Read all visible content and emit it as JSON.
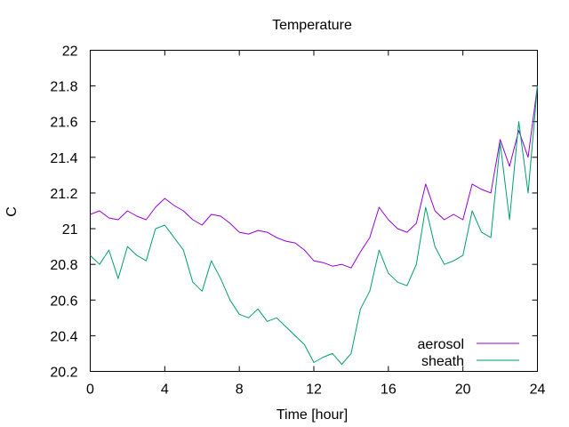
{
  "chart_data": {
    "type": "line",
    "title": "Temperature",
    "xlabel": "Time [hour]",
    "ylabel": "C",
    "xlim": [
      0,
      24
    ],
    "ylim": [
      20.2,
      22.0
    ],
    "x_ticks": [
      0,
      4,
      8,
      12,
      16,
      20,
      24
    ],
    "y_ticks": [
      20.2,
      20.4,
      20.6,
      20.8,
      21.0,
      21.2,
      21.4,
      21.6,
      21.8,
      22.0
    ],
    "y_tick_labels": [
      "20.2",
      "20.4",
      "20.6",
      "20.8",
      "21",
      "21.2",
      "21.4",
      "21.6",
      "21.8",
      "22"
    ],
    "grid": false,
    "legend_position": "bottom-right",
    "series": [
      {
        "name": "aerosol",
        "color": "#9400d3",
        "points": [
          [
            0.0,
            21.08
          ],
          [
            0.5,
            21.1
          ],
          [
            1.0,
            21.06
          ],
          [
            1.5,
            21.05
          ],
          [
            2.0,
            21.1
          ],
          [
            2.5,
            21.07
          ],
          [
            3.0,
            21.05
          ],
          [
            3.5,
            21.12
          ],
          [
            4.0,
            21.17
          ],
          [
            4.5,
            21.13
          ],
          [
            5.0,
            21.1
          ],
          [
            5.5,
            21.05
          ],
          [
            6.0,
            21.02
          ],
          [
            6.5,
            21.08
          ],
          [
            7.0,
            21.07
          ],
          [
            7.5,
            21.03
          ],
          [
            8.0,
            20.98
          ],
          [
            8.5,
            20.97
          ],
          [
            9.0,
            20.99
          ],
          [
            9.5,
            20.98
          ],
          [
            10.0,
            20.95
          ],
          [
            10.5,
            20.93
          ],
          [
            11.0,
            20.92
          ],
          [
            11.5,
            20.88
          ],
          [
            12.0,
            20.82
          ],
          [
            12.5,
            20.81
          ],
          [
            13.0,
            20.79
          ],
          [
            13.5,
            20.8
          ],
          [
            14.0,
            20.78
          ],
          [
            14.5,
            20.87
          ],
          [
            15.0,
            20.95
          ],
          [
            15.5,
            21.12
          ],
          [
            16.0,
            21.05
          ],
          [
            16.5,
            21.0
          ],
          [
            17.0,
            20.98
          ],
          [
            17.5,
            21.03
          ],
          [
            18.0,
            21.25
          ],
          [
            18.5,
            21.1
          ],
          [
            19.0,
            21.05
          ],
          [
            19.5,
            21.08
          ],
          [
            20.0,
            21.05
          ],
          [
            20.5,
            21.25
          ],
          [
            21.0,
            21.22
          ],
          [
            21.5,
            21.2
          ],
          [
            22.0,
            21.5
          ],
          [
            22.5,
            21.35
          ],
          [
            23.0,
            21.55
          ],
          [
            23.5,
            21.4
          ],
          [
            24.0,
            21.8
          ]
        ]
      },
      {
        "name": "sheath",
        "color": "#009e73",
        "points": [
          [
            0.0,
            20.85
          ],
          [
            0.5,
            20.8
          ],
          [
            1.0,
            20.88
          ],
          [
            1.5,
            20.72
          ],
          [
            2.0,
            20.9
          ],
          [
            2.5,
            20.85
          ],
          [
            3.0,
            20.82
          ],
          [
            3.5,
            21.0
          ],
          [
            4.0,
            21.02
          ],
          [
            4.5,
            20.95
          ],
          [
            5.0,
            20.88
          ],
          [
            5.5,
            20.7
          ],
          [
            6.0,
            20.65
          ],
          [
            6.5,
            20.82
          ],
          [
            7.0,
            20.72
          ],
          [
            7.5,
            20.6
          ],
          [
            8.0,
            20.52
          ],
          [
            8.5,
            20.5
          ],
          [
            9.0,
            20.55
          ],
          [
            9.5,
            20.48
          ],
          [
            10.0,
            20.5
          ],
          [
            10.5,
            20.45
          ],
          [
            11.0,
            20.4
          ],
          [
            11.5,
            20.35
          ],
          [
            12.0,
            20.25
          ],
          [
            12.5,
            20.28
          ],
          [
            13.0,
            20.3
          ],
          [
            13.5,
            20.24
          ],
          [
            14.0,
            20.3
          ],
          [
            14.5,
            20.55
          ],
          [
            15.0,
            20.65
          ],
          [
            15.5,
            20.88
          ],
          [
            16.0,
            20.75
          ],
          [
            16.5,
            20.7
          ],
          [
            17.0,
            20.68
          ],
          [
            17.5,
            20.8
          ],
          [
            18.0,
            21.12
          ],
          [
            18.5,
            20.9
          ],
          [
            19.0,
            20.8
          ],
          [
            19.5,
            20.82
          ],
          [
            20.0,
            20.85
          ],
          [
            20.5,
            21.1
          ],
          [
            21.0,
            20.98
          ],
          [
            21.5,
            20.95
          ],
          [
            22.0,
            21.48
          ],
          [
            22.5,
            21.05
          ],
          [
            23.0,
            21.6
          ],
          [
            23.5,
            21.2
          ],
          [
            24.0,
            21.8
          ]
        ]
      }
    ]
  }
}
